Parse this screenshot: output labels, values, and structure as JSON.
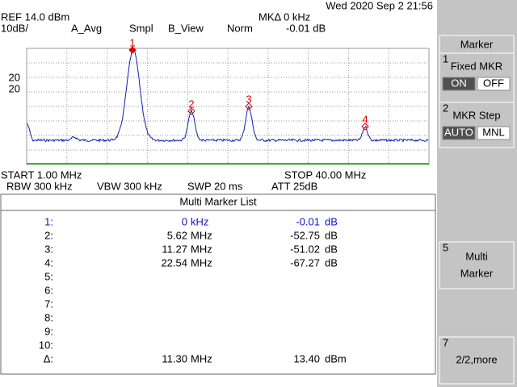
{
  "header": {
    "datetime": "Wed 2020 Sep  2 21:56",
    "ref": "REF 14.0 dBm",
    "marker_delta": "MKΔ 0 kHz",
    "scale": "10dB/",
    "average": "A_Avg",
    "sample": "Smpl",
    "view": "B_View",
    "norm": "Norm",
    "marker_level": "-0.01 dB"
  },
  "scale_labels": [
    "20",
    "20"
  ],
  "markers": [
    "1",
    "2",
    "3",
    "4"
  ],
  "footer": {
    "start": "START 1.00 MHz",
    "stop": "STOP 40.00 MHz",
    "rbw": "RBW 300 kHz",
    "vbw": "VBW 300 kHz",
    "sweep": "SWP 20 ms",
    "attenuation": "ATT 25dB"
  },
  "marker_list": {
    "title": "Multi Marker List",
    "rows": [
      {
        "label": "1:",
        "frequency": "0",
        "frequency_unit": "kHz",
        "level": "-0.01",
        "level_unit": "dB"
      },
      {
        "label": "2:",
        "frequency": "5.62",
        "frequency_unit": "MHz",
        "level": "-52.75",
        "level_unit": "dB"
      },
      {
        "label": "3:",
        "frequency": "11.27",
        "frequency_unit": "MHz",
        "level": "-51.02",
        "level_unit": "dB"
      },
      {
        "label": "4:",
        "frequency": "22.54",
        "frequency_unit": "MHz",
        "level": "-67.27",
        "level_unit": "dB"
      },
      {
        "label": "5:"
      },
      {
        "label": "6:"
      },
      {
        "label": "7:"
      },
      {
        "label": "8:"
      },
      {
        "label": "9:"
      },
      {
        "label": "10:"
      },
      {
        "label": "Δ:",
        "frequency": "11.30",
        "frequency_unit": "MHz",
        "level": "13.40",
        "level_unit": "dBm"
      }
    ]
  },
  "softkeys": {
    "title": "Marker",
    "keys": [
      {
        "number": "1",
        "label": "Fixed MKR",
        "options": [
          "ON",
          "OFF"
        ]
      },
      {
        "number": "2",
        "label": "MKR Step",
        "options": [
          "AUTO",
          "MNL"
        ]
      },
      {
        "number": "5",
        "label_lines": [
          "Multi",
          "Marker"
        ]
      },
      {
        "number": "7",
        "label": "2/2,more"
      }
    ]
  }
}
